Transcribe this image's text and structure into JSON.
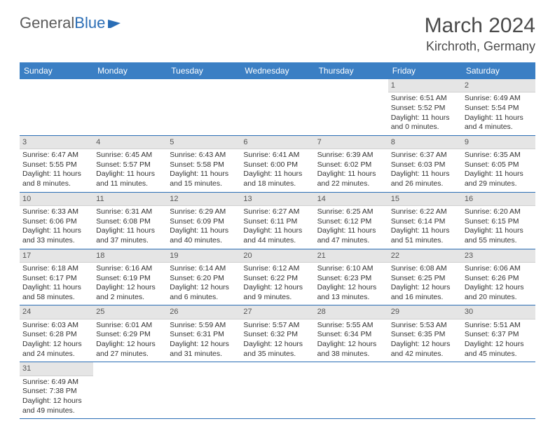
{
  "logo": {
    "text1": "General",
    "text2": "Blue"
  },
  "title": "March 2024",
  "location": "Kirchroth, Germany",
  "colors": {
    "header_bg": "#3b7fc4",
    "header_text": "#ffffff",
    "row_border": "#2a6db5",
    "daynum_bg": "#e5e5e5",
    "text": "#333333",
    "logo_gray": "#5a5a5a",
    "logo_blue": "#2a6db5"
  },
  "day_headers": [
    "Sunday",
    "Monday",
    "Tuesday",
    "Wednesday",
    "Thursday",
    "Friday",
    "Saturday"
  ],
  "weeks": [
    [
      null,
      null,
      null,
      null,
      null,
      {
        "n": "1",
        "sr": "Sunrise: 6:51 AM",
        "ss": "Sunset: 5:52 PM",
        "dl1": "Daylight: 11 hours",
        "dl2": "and 0 minutes."
      },
      {
        "n": "2",
        "sr": "Sunrise: 6:49 AM",
        "ss": "Sunset: 5:54 PM",
        "dl1": "Daylight: 11 hours",
        "dl2": "and 4 minutes."
      }
    ],
    [
      {
        "n": "3",
        "sr": "Sunrise: 6:47 AM",
        "ss": "Sunset: 5:55 PM",
        "dl1": "Daylight: 11 hours",
        "dl2": "and 8 minutes."
      },
      {
        "n": "4",
        "sr": "Sunrise: 6:45 AM",
        "ss": "Sunset: 5:57 PM",
        "dl1": "Daylight: 11 hours",
        "dl2": "and 11 minutes."
      },
      {
        "n": "5",
        "sr": "Sunrise: 6:43 AM",
        "ss": "Sunset: 5:58 PM",
        "dl1": "Daylight: 11 hours",
        "dl2": "and 15 minutes."
      },
      {
        "n": "6",
        "sr": "Sunrise: 6:41 AM",
        "ss": "Sunset: 6:00 PM",
        "dl1": "Daylight: 11 hours",
        "dl2": "and 18 minutes."
      },
      {
        "n": "7",
        "sr": "Sunrise: 6:39 AM",
        "ss": "Sunset: 6:02 PM",
        "dl1": "Daylight: 11 hours",
        "dl2": "and 22 minutes."
      },
      {
        "n": "8",
        "sr": "Sunrise: 6:37 AM",
        "ss": "Sunset: 6:03 PM",
        "dl1": "Daylight: 11 hours",
        "dl2": "and 26 minutes."
      },
      {
        "n": "9",
        "sr": "Sunrise: 6:35 AM",
        "ss": "Sunset: 6:05 PM",
        "dl1": "Daylight: 11 hours",
        "dl2": "and 29 minutes."
      }
    ],
    [
      {
        "n": "10",
        "sr": "Sunrise: 6:33 AM",
        "ss": "Sunset: 6:06 PM",
        "dl1": "Daylight: 11 hours",
        "dl2": "and 33 minutes."
      },
      {
        "n": "11",
        "sr": "Sunrise: 6:31 AM",
        "ss": "Sunset: 6:08 PM",
        "dl1": "Daylight: 11 hours",
        "dl2": "and 37 minutes."
      },
      {
        "n": "12",
        "sr": "Sunrise: 6:29 AM",
        "ss": "Sunset: 6:09 PM",
        "dl1": "Daylight: 11 hours",
        "dl2": "and 40 minutes."
      },
      {
        "n": "13",
        "sr": "Sunrise: 6:27 AM",
        "ss": "Sunset: 6:11 PM",
        "dl1": "Daylight: 11 hours",
        "dl2": "and 44 minutes."
      },
      {
        "n": "14",
        "sr": "Sunrise: 6:25 AM",
        "ss": "Sunset: 6:12 PM",
        "dl1": "Daylight: 11 hours",
        "dl2": "and 47 minutes."
      },
      {
        "n": "15",
        "sr": "Sunrise: 6:22 AM",
        "ss": "Sunset: 6:14 PM",
        "dl1": "Daylight: 11 hours",
        "dl2": "and 51 minutes."
      },
      {
        "n": "16",
        "sr": "Sunrise: 6:20 AM",
        "ss": "Sunset: 6:15 PM",
        "dl1": "Daylight: 11 hours",
        "dl2": "and 55 minutes."
      }
    ],
    [
      {
        "n": "17",
        "sr": "Sunrise: 6:18 AM",
        "ss": "Sunset: 6:17 PM",
        "dl1": "Daylight: 11 hours",
        "dl2": "and 58 minutes."
      },
      {
        "n": "18",
        "sr": "Sunrise: 6:16 AM",
        "ss": "Sunset: 6:19 PM",
        "dl1": "Daylight: 12 hours",
        "dl2": "and 2 minutes."
      },
      {
        "n": "19",
        "sr": "Sunrise: 6:14 AM",
        "ss": "Sunset: 6:20 PM",
        "dl1": "Daylight: 12 hours",
        "dl2": "and 6 minutes."
      },
      {
        "n": "20",
        "sr": "Sunrise: 6:12 AM",
        "ss": "Sunset: 6:22 PM",
        "dl1": "Daylight: 12 hours",
        "dl2": "and 9 minutes."
      },
      {
        "n": "21",
        "sr": "Sunrise: 6:10 AM",
        "ss": "Sunset: 6:23 PM",
        "dl1": "Daylight: 12 hours",
        "dl2": "and 13 minutes."
      },
      {
        "n": "22",
        "sr": "Sunrise: 6:08 AM",
        "ss": "Sunset: 6:25 PM",
        "dl1": "Daylight: 12 hours",
        "dl2": "and 16 minutes."
      },
      {
        "n": "23",
        "sr": "Sunrise: 6:06 AM",
        "ss": "Sunset: 6:26 PM",
        "dl1": "Daylight: 12 hours",
        "dl2": "and 20 minutes."
      }
    ],
    [
      {
        "n": "24",
        "sr": "Sunrise: 6:03 AM",
        "ss": "Sunset: 6:28 PM",
        "dl1": "Daylight: 12 hours",
        "dl2": "and 24 minutes."
      },
      {
        "n": "25",
        "sr": "Sunrise: 6:01 AM",
        "ss": "Sunset: 6:29 PM",
        "dl1": "Daylight: 12 hours",
        "dl2": "and 27 minutes."
      },
      {
        "n": "26",
        "sr": "Sunrise: 5:59 AM",
        "ss": "Sunset: 6:31 PM",
        "dl1": "Daylight: 12 hours",
        "dl2": "and 31 minutes."
      },
      {
        "n": "27",
        "sr": "Sunrise: 5:57 AM",
        "ss": "Sunset: 6:32 PM",
        "dl1": "Daylight: 12 hours",
        "dl2": "and 35 minutes."
      },
      {
        "n": "28",
        "sr": "Sunrise: 5:55 AM",
        "ss": "Sunset: 6:34 PM",
        "dl1": "Daylight: 12 hours",
        "dl2": "and 38 minutes."
      },
      {
        "n": "29",
        "sr": "Sunrise: 5:53 AM",
        "ss": "Sunset: 6:35 PM",
        "dl1": "Daylight: 12 hours",
        "dl2": "and 42 minutes."
      },
      {
        "n": "30",
        "sr": "Sunrise: 5:51 AM",
        "ss": "Sunset: 6:37 PM",
        "dl1": "Daylight: 12 hours",
        "dl2": "and 45 minutes."
      }
    ],
    [
      {
        "n": "31",
        "sr": "Sunrise: 6:49 AM",
        "ss": "Sunset: 7:38 PM",
        "dl1": "Daylight: 12 hours",
        "dl2": "and 49 minutes."
      },
      null,
      null,
      null,
      null,
      null,
      null
    ]
  ]
}
